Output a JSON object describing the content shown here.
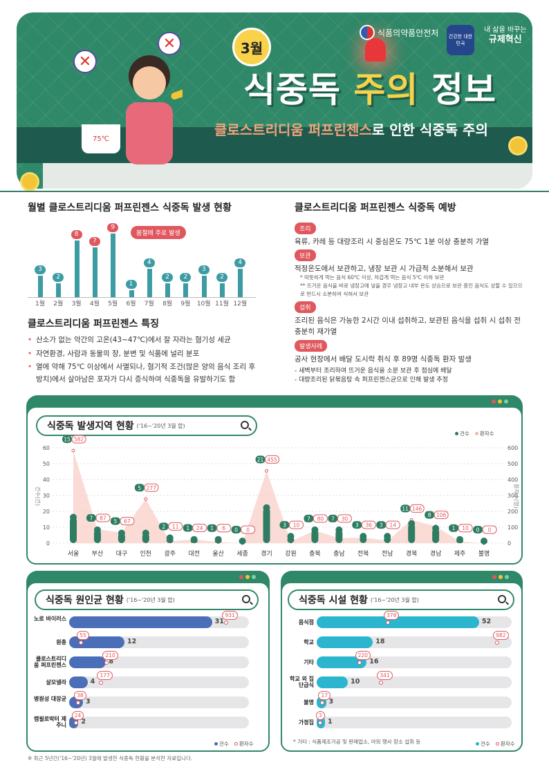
{
  "hero": {
    "month_badge": "3월",
    "title_a": "식중독 ",
    "title_b": "주의",
    "title_c": " 정보",
    "subtitle_hl": "클로스트리디움 퍼프린젠스",
    "subtitle_rest": "로 인한 식중독 주의",
    "org_name": "식품의약품안전처",
    "stamp_text": "건강한 대한민국",
    "slogan_top": "내 삶을 바꾸는",
    "slogan_main": "규제혁신",
    "pot_temp": "75℃"
  },
  "monthly": {
    "heading": "월별 클로스트리디움 퍼프린젠스 식중독 발생 현황",
    "note": "봄철에 주로 발생",
    "chart_data": {
      "type": "bar",
      "categories": [
        "1월",
        "2월",
        "3월",
        "4월",
        "5월",
        "6월",
        "7월",
        "8월",
        "9월",
        "10월",
        "11월",
        "12월"
      ],
      "values": [
        3,
        2,
        8,
        7,
        9,
        1,
        4,
        2,
        2,
        3,
        2,
        4
      ]
    }
  },
  "features": {
    "heading": "클로스트리디움 퍼프린젠스 특징",
    "items": [
      "산소가 없는 악간의 고온(43~47℃)에서 잘 자라는 혐기성 세균",
      "자연환경, 사람과 동물의 장, 분변 및 식품에 널리 분포",
      "열에 약해 75℃ 이상에서 사멸되나, 혐기적 조건(많은 양의 음식 조리 후 방치)에서 살아남은 포자가 다시 증식하여 식중독을 유발하기도 함"
    ]
  },
  "prevention": {
    "heading": "클로스트리디움 퍼프린젠스 식중독 예방",
    "cook_tag": "조리",
    "cook_text": "육류, 카레 등 대량조리 시 중심온도 75℃ 1분 이상 충분히 가열",
    "store_tag": "보관",
    "store_text": "적정온도에서 보관하고, 냉장 보관 시 가급적 소분해서 보관",
    "store_note1": "* 따뜻하게 먹는 음식 60℃ 이상, 차갑게 먹는 음식 5℃ 이하 보관",
    "store_note2": "** 뜨거운 음식을 바로 냉장고에 넣을 경우 냉장고 내부 온도 상승으로 보관 중인 음식도 상할 수 있으므로 반드시 소분하여 식혀서 보관",
    "eat_tag": "섭취",
    "eat_text": "조리된 음식은 가능한 2시간 이내 섭취하고, 보관된 음식을 섭취 시 섭취 전 충분히 재가열",
    "case_tag": "발생사례",
    "case_text": "공사 현장에서 배달 도시락 취식 후 89명 식중독 환자 발생",
    "case_b1": "- 새벽부터 조리하여 뜨거운 음식을 소분 보관 후 점심에 배달",
    "case_b2": "- 대량조리된 닭볶음탕 속 퍼프린젠스균으로 인해 발생 추정"
  },
  "region": {
    "title": "식중독 발생지역 현황",
    "period": "('16~'20년 3월 합)",
    "legend_cases": "건수",
    "legend_patients": "환자수",
    "y_left_label": "건수(건)",
    "y_right_label": "환자수(명)",
    "y_left_ticks": [
      "60",
      "50",
      "40",
      "30",
      "20",
      "10",
      "0"
    ],
    "y_right_ticks": [
      "600",
      "500",
      "400",
      "300",
      "200",
      "100",
      "0"
    ],
    "chart_data": {
      "type": "bar",
      "categories": [
        "서울",
        "부산",
        "대구",
        "인천",
        "광주",
        "대전",
        "울산",
        "세종",
        "경기",
        "강원",
        "충북",
        "충남",
        "전북",
        "전남",
        "경북",
        "경남",
        "제주",
        "불명"
      ],
      "series": [
        {
          "name": "건수",
          "values": [
            15,
            7,
            5,
            5,
            2,
            1,
            1,
            0,
            21,
            3,
            7,
            7,
            3,
            3,
            11,
            8,
            1,
            0
          ]
        },
        {
          "name": "환자수",
          "values": [
            582,
            87,
            67,
            277,
            11,
            24,
            6,
            0,
            455,
            10,
            80,
            30,
            36,
            14,
            146,
            106,
            10,
            0
          ]
        }
      ],
      "ylim": [
        0,
        60
      ],
      "y2lim": [
        0,
        600
      ]
    }
  },
  "cause": {
    "title": "식중독 원인균 현황",
    "period": "('16~'20년 3월 합)",
    "legend_cases": "건수",
    "legend_patients": "환자수",
    "chart_data": {
      "type": "bar",
      "categories": [
        "노로 바이러스",
        "원충",
        "클로스트리디움 퍼프린젠스",
        "살모넬라",
        "병원성 대장균",
        "캠필로박터 제주니"
      ],
      "series": [
        {
          "name": "건수",
          "values": [
            31,
            12,
            8,
            4,
            3,
            2
          ]
        },
        {
          "name": "환자수",
          "values": [
            931,
            55,
            210,
            177,
            38,
            24
          ]
        }
      ]
    }
  },
  "facility": {
    "title": "식중독 시설 현황",
    "period": "('16~'20년 3월 합)",
    "legend_cases": "건수",
    "legend_patients": "환자수",
    "footnote": "* 기타 : 식품제조가공 및 판매업소, 야외 행사 장소 섭취 등",
    "chart_data": {
      "type": "bar",
      "categories": [
        "음식점",
        "학교",
        "기타",
        "학교 외 집단급식",
        "불명",
        "가정집"
      ],
      "series": [
        {
          "name": "건수",
          "values": [
            52,
            18,
            16,
            10,
            3,
            1
          ]
        },
        {
          "name": "환자수",
          "values": [
            378,
            982,
            220,
            341,
            17,
            3
          ]
        }
      ]
    }
  },
  "footer": "※ 최근 5년간('16~'20년) 3월에 발생한 식중독 현황을 분석한 자료입니다.",
  "colors": {
    "green": "#2f8868",
    "red": "#e0575e",
    "teal": "#3d9ba3",
    "blue": "#4a6fb8",
    "cyan": "#2bb5cf"
  }
}
